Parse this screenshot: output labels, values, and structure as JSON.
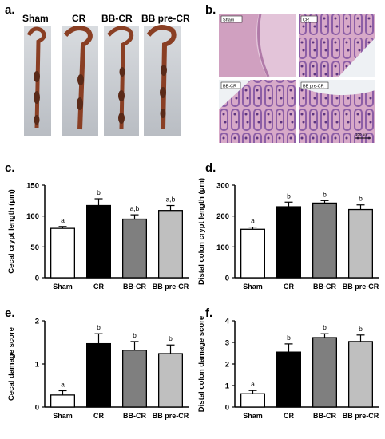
{
  "panels": {
    "a": {
      "letter": "a.",
      "groups": [
        "Sham",
        "CR",
        "BB-CR",
        "BB pre-CR"
      ]
    },
    "b": {
      "letter": "b.",
      "labels": [
        "Sham",
        "CR",
        "BB-CR",
        "BB pre-CR"
      ],
      "scale_bar": "100 μm"
    },
    "c": {
      "letter": "c."
    },
    "d": {
      "letter": "d."
    },
    "e": {
      "letter": "e."
    },
    "f": {
      "letter": "f."
    }
  },
  "colors": {
    "sham": "#ffffff",
    "cr": "#000000",
    "bbcr": "#7f7f7f",
    "bbpre": "#bfbfbf",
    "axis": "#000000",
    "tissue_pink": "#d7a9c8",
    "tissue_purple": "#8c5ea6"
  },
  "chart_data": [
    {
      "id": "c",
      "type": "bar",
      "categories": [
        "Sham",
        "CR",
        "BB-CR",
        "BB pre-CR"
      ],
      "values": [
        80,
        117,
        95,
        109
      ],
      "errors": [
        3,
        11,
        7,
        8
      ],
      "letters": [
        "a",
        "b",
        "a,b",
        "a,b"
      ],
      "ylabel": "Cecal crypt length (μm)",
      "ylim": [
        0,
        150
      ],
      "yticks": [
        0,
        50,
        100,
        150
      ]
    },
    {
      "id": "d",
      "type": "bar",
      "categories": [
        "Sham",
        "CR",
        "BB-CR",
        "BB pre-CR"
      ],
      "values": [
        157,
        230,
        242,
        221
      ],
      "errors": [
        7,
        15,
        8,
        15
      ],
      "letters": [
        "a",
        "b",
        "b",
        "b"
      ],
      "ylabel": "Distal colon crypt length (μm)",
      "ylim": [
        0,
        300
      ],
      "yticks": [
        0,
        100,
        200,
        300
      ]
    },
    {
      "id": "e",
      "type": "bar",
      "categories": [
        "Sham",
        "CR",
        "BB-CR",
        "BB pre-CR"
      ],
      "values": [
        0.28,
        1.47,
        1.32,
        1.24
      ],
      "errors": [
        0.1,
        0.23,
        0.2,
        0.2
      ],
      "letters": [
        "a",
        "b",
        "b",
        "b"
      ],
      "ylabel": "Cecal damage score",
      "ylim": [
        0,
        2
      ],
      "yticks": [
        0,
        1,
        2
      ]
    },
    {
      "id": "f",
      "type": "bar",
      "categories": [
        "Sham",
        "CR",
        "BB-CR",
        "BB pre-CR"
      ],
      "values": [
        0.62,
        2.55,
        3.22,
        3.04
      ],
      "errors": [
        0.15,
        0.38,
        0.18,
        0.3
      ],
      "letters": [
        "a",
        "b",
        "b",
        "b"
      ],
      "ylabel": "Distal colon damage score",
      "ylim": [
        0,
        4
      ],
      "yticks": [
        0,
        1,
        2,
        3,
        4
      ]
    }
  ]
}
